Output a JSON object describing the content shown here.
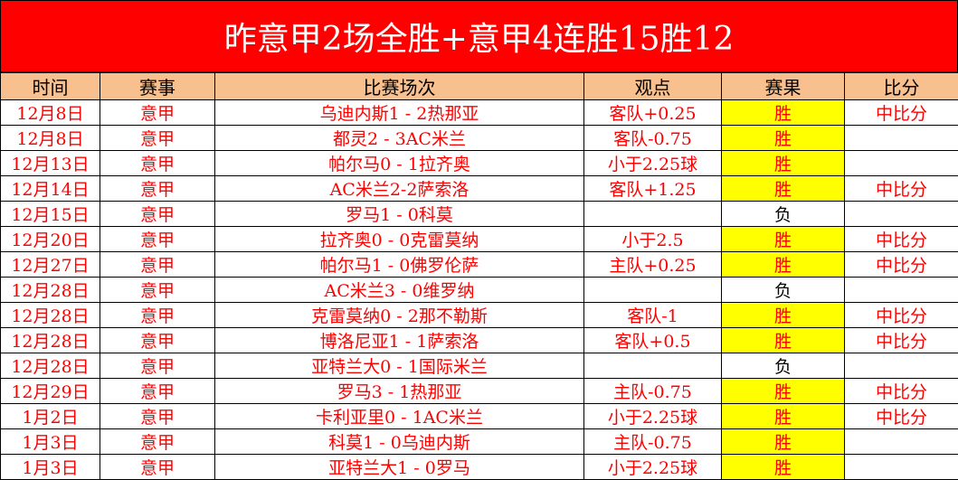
{
  "title": "昨意甲2场全胜+意甲4连胜15胜12",
  "colors": {
    "title_bg": "#fe0000",
    "header_bg": "#f9c08f",
    "win_bg": "#ffff00",
    "text": "#ff0000"
  },
  "headers": [
    "时间",
    "赛事",
    "比赛场次",
    "观点",
    "赛果",
    "比分"
  ],
  "rows": [
    [
      "12月8日",
      "意甲",
      "乌迪内斯1 - 2热那亚",
      "客队+0.25",
      "胜",
      "中比分"
    ],
    [
      "12月8日",
      "意甲",
      "都灵2 - 3AC米兰",
      "客队-0.75",
      "胜",
      ""
    ],
    [
      "12月13日",
      "意甲",
      "帕尔马0 - 1拉齐奥",
      "小于2.25球",
      "胜",
      ""
    ],
    [
      "12月14日",
      "意甲",
      "AC米兰2-2萨索洛",
      "客队+1.25",
      "胜",
      "中比分"
    ],
    [
      "12月15日",
      "意甲",
      "罗马1 - 0科莫",
      "",
      "负",
      ""
    ],
    [
      "12月20日",
      "意甲",
      "拉齐奥0 - 0克雷莫纳",
      "小于2.5",
      "胜",
      "中比分"
    ],
    [
      "12月27日",
      "意甲",
      "帕尔马1 - 0佛罗伦萨",
      "主队+0.25",
      "胜",
      "中比分"
    ],
    [
      "12月28日",
      "意甲",
      "AC米兰3 - 0维罗纳",
      "",
      "负",
      ""
    ],
    [
      "12月28日",
      "意甲",
      "克雷莫纳0 - 2那不勒斯",
      "客队-1",
      "胜",
      "中比分"
    ],
    [
      "12月28日",
      "意甲",
      "博洛尼亚1 - 1萨索洛",
      "客队+0.5",
      "胜",
      "中比分"
    ],
    [
      "12月28日",
      "意甲",
      "亚特兰大0 - 1国际米兰",
      "",
      "负",
      ""
    ],
    [
      "12月29日",
      "意甲",
      "罗马3 - 1热那亚",
      "主队-0.75",
      "胜",
      "中比分"
    ],
    [
      "1月2日",
      "意甲",
      "卡利亚里0 - 1AC米兰",
      "小于2.25球",
      "胜",
      "中比分"
    ],
    [
      "1月3日",
      "意甲",
      "科莫1 - 0乌迪内斯",
      "主队-0.75",
      "胜",
      ""
    ],
    [
      "1月3日",
      "意甲",
      "亚特兰大1 - 0罗马",
      "小于2.25球",
      "胜",
      ""
    ]
  ]
}
